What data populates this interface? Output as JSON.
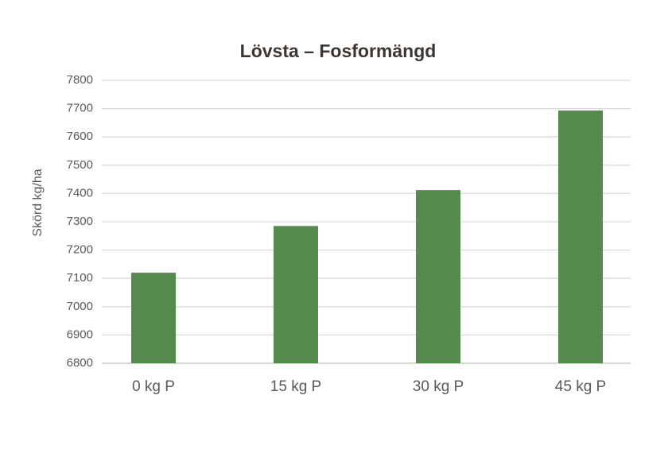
{
  "chart_data": {
    "type": "bar",
    "title": "Lövsta – Fosformängd",
    "y_label": "Skörd kg/ha",
    "categories": [
      "0 kg P",
      "15 kg P",
      "30 kg P",
      "45 kg P"
    ],
    "values": [
      7120,
      7285,
      7412,
      7693
    ],
    "color": "#548a4b",
    "ylim": [
      6800,
      7800
    ],
    "yticks": [
      6800,
      6900,
      7000,
      7100,
      7200,
      7300,
      7400,
      7500,
      7600,
      7700,
      7800
    ],
    "grid": true
  }
}
